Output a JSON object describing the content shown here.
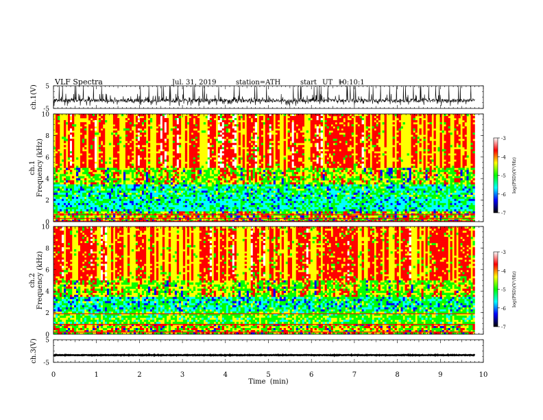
{
  "header": {
    "title": "VLF Spectra",
    "date": "Jul. 31, 2019",
    "station": "station=ATH",
    "start_label": "start UT =",
    "start_time": "10:10:1"
  },
  "colorbar": {
    "label": "log(PSD)(V²/Hz)",
    "ticks": [
      "-3",
      "-4",
      "-5",
      "-6",
      "-7"
    ],
    "colors": [
      "#ffffff",
      "#ff0000",
      "#ffff00",
      "#00ff00",
      "#00ffff",
      "#0000ff",
      "#000000"
    ]
  },
  "chart_data": [
    {
      "type": "line",
      "name": "ch1-waveform",
      "ylabel": "ch.1(V)",
      "yticks": [
        "5",
        "-5"
      ],
      "ylim": [
        -5,
        5
      ],
      "xlim": [
        0,
        10
      ],
      "description_values": {
        "baseline": -1.5,
        "noise_range": [
          -4,
          1.5
        ],
        "x_end": 9.8
      }
    },
    {
      "type": "heatmap",
      "name": "ch1-spectrogram",
      "ylabel": "ch.1 Frequency (kHz)",
      "yticks": [
        "10",
        "8",
        "6",
        "4",
        "2",
        "0"
      ],
      "ylim": [
        0,
        10
      ],
      "xlim": [
        0,
        10
      ],
      "x_data_end": 9.8
    },
    {
      "type": "heatmap",
      "name": "ch2-spectrogram",
      "ylabel": "ch.2 Frequency (kHz)",
      "yticks": [
        "10",
        "8",
        "6",
        "4",
        "2",
        "0"
      ],
      "ylim": [
        0,
        10
      ],
      "xlim": [
        0,
        10
      ],
      "x_data_end": 9.8
    },
    {
      "type": "line",
      "name": "ch3-waveform",
      "ylabel": "ch.3(V)",
      "yticks": [
        "5",
        "-5"
      ],
      "ylim": [
        -5,
        5
      ],
      "xlim": [
        0,
        10
      ],
      "description_values": {
        "baseline": -1.8,
        "x_end": 9.8
      }
    }
  ],
  "xaxis": {
    "label": "Time (min)",
    "ticks": [
      "0",
      "1",
      "2",
      "3",
      "4",
      "5",
      "6",
      "7",
      "8",
      "9",
      "10"
    ]
  }
}
